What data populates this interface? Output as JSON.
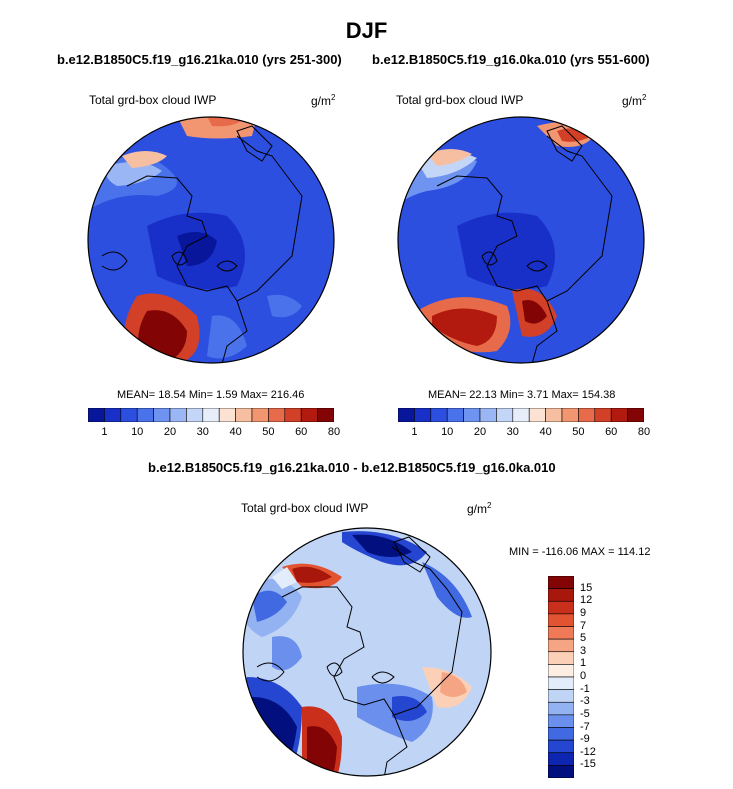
{
  "title": "DJF",
  "case_left": "b.e12.B1850C5.f19_g16.21ka.010 (yrs 251-300)",
  "case_right": "b.e12.B1850C5.f19_g16.0ka.010 (yrs 551-600)",
  "diff_title": "b.e12.B1850C5.f19_g16.21ka.010 - b.e12.B1850C5.f19_g16.0ka.010",
  "panels": [
    {
      "variable": "Total grd-box cloud IWP",
      "units_base": "g/m",
      "units_exp": "2",
      "stats": "MEAN=  18.54  Min=   1.59  Max=  216.46"
    },
    {
      "variable": "Total grd-box cloud IWP",
      "units_base": "g/m",
      "units_exp": "2",
      "stats": "MEAN=  22.13  Min=   3.71  Max=  154.38"
    },
    {
      "variable": "Total grd-box cloud IWP",
      "units_base": "g/m",
      "units_exp": "2",
      "stats": "MIN = -116.06 MAX = 114.12"
    }
  ],
  "colorbar_abs": {
    "colors": [
      "#08169c",
      "#1830c8",
      "#2c4fe0",
      "#4a72ea",
      "#6f93f0",
      "#9ab6f4",
      "#c4d6f7",
      "#e7eefa",
      "#fbe2d2",
      "#f7bfa1",
      "#f19671",
      "#e76b4a",
      "#d24027",
      "#b21a0f",
      "#820404"
    ],
    "labels": [
      "1",
      "10",
      "20",
      "30",
      "40",
      "50",
      "60",
      "80"
    ]
  },
  "colorbar_diff": {
    "colors": [
      "#820404",
      "#a8170b",
      "#c92f1a",
      "#e25331",
      "#f07a57",
      "#f6a584",
      "#fbd0b7",
      "#fdeee4",
      "#e3ecfa",
      "#c0d4f6",
      "#93b2f1",
      "#6a8fec",
      "#4169e2",
      "#2446d0",
      "#0d25b0",
      "#020f7e"
    ],
    "labels": [
      "15",
      "12",
      "9",
      "7",
      "5",
      "3",
      "1",
      "0",
      "-1",
      "-3",
      "-5",
      "-7",
      "-9",
      "-12",
      "-15"
    ]
  },
  "chart_data": [
    {
      "type": "heatmap",
      "title": "Total grd-box cloud IWP",
      "units": "g/m2",
      "mean": 18.54,
      "min": 1.59,
      "max": 216.46,
      "contour_levels": [
        1,
        5,
        10,
        15,
        20,
        25,
        30,
        35,
        40,
        45,
        50,
        55,
        60,
        70,
        80
      ]
    },
    {
      "type": "heatmap",
      "title": "Total grd-box cloud IWP",
      "units": "g/m2",
      "mean": 22.13,
      "min": 3.71,
      "max": 154.38,
      "contour_levels": [
        1,
        5,
        10,
        15,
        20,
        25,
        30,
        35,
        40,
        45,
        50,
        55,
        60,
        70,
        80
      ]
    },
    {
      "type": "heatmap",
      "title": "Total grd-box cloud IWP",
      "units": "g/m2",
      "min": -116.06,
      "max": 114.12,
      "contour_levels": [
        -15,
        -12,
        -9,
        -7,
        -5,
        -3,
        -1,
        0,
        1,
        3,
        5,
        7,
        9,
        12,
        15
      ]
    }
  ]
}
